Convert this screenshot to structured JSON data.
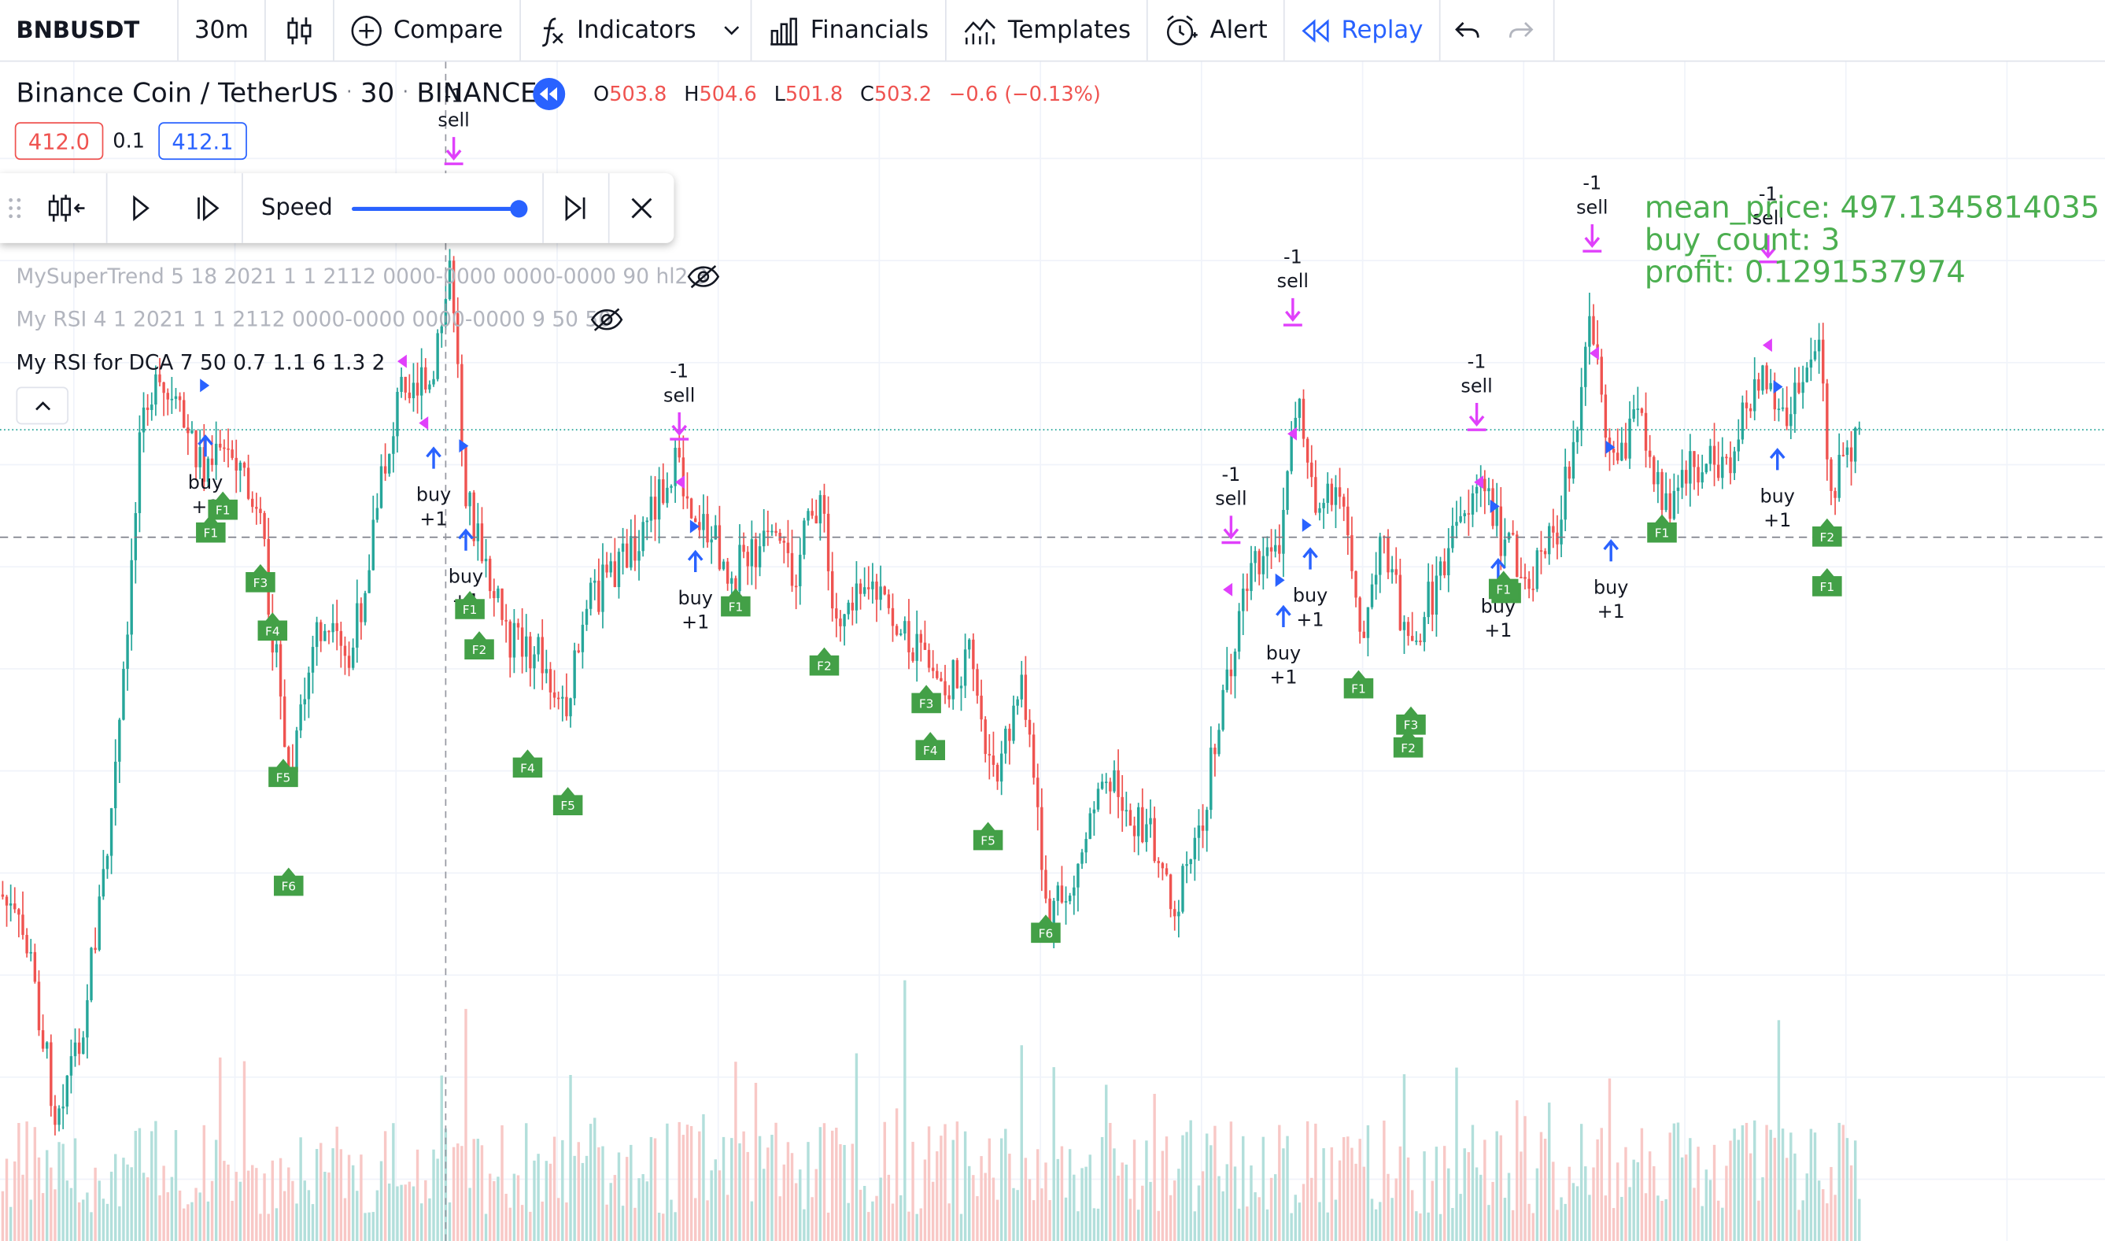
{
  "toolbar": {
    "symbol": "BNBUSDT",
    "interval": "30m",
    "compare_label": "Compare",
    "indicators_label": "Indicators",
    "financials_label": "Financials",
    "templates_label": "Templates",
    "alert_label": "Alert",
    "replay_label": "Replay"
  },
  "legend": {
    "title": "Binance Coin / TetherUS",
    "interval": "30",
    "exchange": "BINANCE",
    "o_label": "O",
    "o": "503.8",
    "h_label": "H",
    "h": "504.6",
    "l_label": "L",
    "l": "501.8",
    "c_label": "C",
    "c": "503.2",
    "change": "−0.6 (−0.13%)",
    "bid": "412.0",
    "spread": "0.1",
    "ask": "412.1"
  },
  "replay_panel": {
    "speed_label": "Speed",
    "speed_level": 1.0
  },
  "indicators": [
    {
      "text": "MySuperTrend 5 18 2021 1 1 2112 0000-0000 0000-0000 90 hl2 3",
      "hidden": true
    },
    {
      "text": "My RSI 4 1 2021 1 1 2112 0000-0000 0000-0000 9 50 50",
      "hidden": true
    },
    {
      "text": "My RSI for DCA 7 50 0.7 1.1 6 1.3 2",
      "hidden": false
    }
  ],
  "stats": {
    "mean_price": "mean_price: 497.1345814035",
    "buy_count": "buy_count: 3",
    "profit": "profit: 0.1291537974"
  },
  "colors": {
    "up": "#26a69a",
    "down": "#ef5350",
    "sell_marker": "#e040fb",
    "buy_marker": "#2962ff",
    "dca_flag": "#43a047",
    "stats_text": "#4caf50"
  },
  "chart_data": {
    "type": "candlestick",
    "annotations": {
      "sell": [
        {
          "count": "-1",
          "label": "sell"
        },
        {
          "count": "-1",
          "label": "sell"
        },
        {
          "count": "-1",
          "label": "sell"
        },
        {
          "count": "-1",
          "label": "sell"
        },
        {
          "count": "-1",
          "label": "sell"
        },
        {
          "count": "-1",
          "label": "sell"
        },
        {
          "count": "-1",
          "label": "sell"
        }
      ],
      "buy": [
        {
          "label": "buy",
          "count": "+1"
        },
        {
          "label": "buy",
          "count": "+1"
        },
        {
          "label": "buy",
          "count": "+1"
        },
        {
          "label": "buy",
          "count": "+1"
        },
        {
          "label": "buy",
          "count": "+1"
        },
        {
          "label": "buy",
          "count": "+1"
        },
        {
          "label": "buy",
          "count": "+1"
        },
        {
          "label": "buy",
          "count": "+1"
        },
        {
          "label": "buy",
          "count": "+1"
        }
      ],
      "dca_flags": [
        "F1",
        "F3",
        "F4",
        "F5",
        "F6",
        "F1",
        "F2",
        "F4",
        "F5",
        "F1",
        "F2",
        "F3",
        "F4",
        "F5",
        "F6",
        "F1",
        "F1",
        "F3",
        "F2",
        "F1",
        "F1",
        "F1",
        "F2",
        "F1"
      ]
    }
  }
}
